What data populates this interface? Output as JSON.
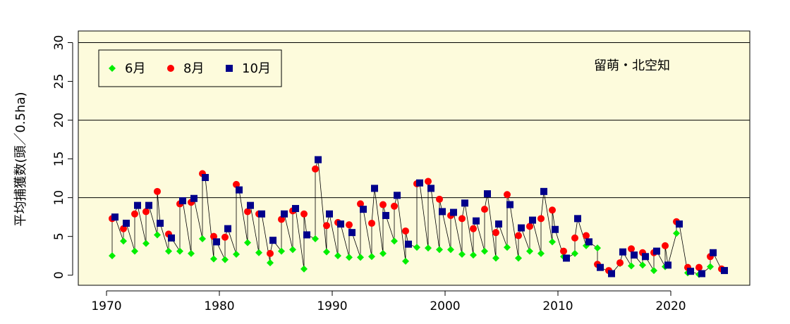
{
  "chart_data": {
    "type": "scatter",
    "title": "",
    "annotation": "留萌・北空知",
    "ylabel": "平均捕獲数(頭／0.5ha)",
    "xlabel": "",
    "xlim": [
      1967.5,
      2027
    ],
    "ylim": [
      -1.3,
      31.5
    ],
    "xticks": [
      1970,
      1980,
      1990,
      2000,
      2010,
      2020
    ],
    "yticks": [
      0,
      5,
      10,
      15,
      20,
      25,
      30
    ],
    "hlines": [
      10,
      20,
      30
    ],
    "background": "#fdfbdc",
    "legend_position": "top-left",
    "series": [
      {
        "name": "6月",
        "marker": "diamond",
        "color": "#00ee00",
        "points": [
          [
            1970.5,
            2.5
          ],
          [
            1971.5,
            4.4
          ],
          [
            1972.5,
            3.1
          ],
          [
            1973.5,
            4.1
          ],
          [
            1974.5,
            5.2
          ],
          [
            1975.5,
            3.1
          ],
          [
            1976.5,
            3.1
          ],
          [
            1977.5,
            2.8
          ],
          [
            1978.5,
            4.7
          ],
          [
            1979.5,
            2.1
          ],
          [
            1980.5,
            2.0
          ],
          [
            1981.5,
            2.7
          ],
          [
            1982.5,
            4.2
          ],
          [
            1983.5,
            2.9
          ],
          [
            1984.5,
            1.6
          ],
          [
            1985.5,
            3.1
          ],
          [
            1986.5,
            3.3
          ],
          [
            1987.5,
            0.8
          ],
          [
            1988.5,
            4.7
          ],
          [
            1989.5,
            3.0
          ],
          [
            1990.5,
            2.5
          ],
          [
            1991.5,
            2.3
          ],
          [
            1992.5,
            2.3
          ],
          [
            1993.5,
            2.4
          ],
          [
            1994.5,
            2.8
          ],
          [
            1995.5,
            4.4
          ],
          [
            1996.5,
            1.8
          ],
          [
            1997.5,
            3.6
          ],
          [
            1998.5,
            3.5
          ],
          [
            1999.5,
            3.3
          ],
          [
            2000.5,
            3.3
          ],
          [
            2001.5,
            2.7
          ],
          [
            2002.5,
            2.6
          ],
          [
            2003.5,
            3.1
          ],
          [
            2004.5,
            2.2
          ],
          [
            2005.5,
            3.6
          ],
          [
            2006.5,
            2.2
          ],
          [
            2007.5,
            3.1
          ],
          [
            2008.5,
            2.8
          ],
          [
            2009.5,
            4.3
          ],
          [
            2010.5,
            2.4
          ],
          [
            2011.5,
            2.8
          ],
          [
            2012.5,
            3.8
          ],
          [
            2013.5,
            3.5
          ],
          [
            2014.5,
            0.5
          ],
          [
            2015.5,
            1.5
          ],
          [
            2016.5,
            1.2
          ],
          [
            2017.5,
            1.3
          ],
          [
            2018.5,
            0.6
          ],
          [
            2019.5,
            1.1
          ],
          [
            2020.5,
            5.4
          ],
          [
            2021.5,
            0.3
          ],
          [
            2022.5,
            0.1
          ],
          [
            2023.5,
            1.1
          ],
          [
            2024.5,
            0.7
          ]
        ]
      },
      {
        "name": "8月",
        "marker": "circle",
        "color": "#ff0000",
        "points": [
          [
            1970.5,
            7.3
          ],
          [
            1971.5,
            6.0
          ],
          [
            1972.5,
            7.9
          ],
          [
            1973.5,
            8.2
          ],
          [
            1974.5,
            10.8
          ],
          [
            1975.5,
            5.3
          ],
          [
            1976.5,
            9.2
          ],
          [
            1977.5,
            9.4
          ],
          [
            1978.5,
            13.1
          ],
          [
            1979.5,
            5.0
          ],
          [
            1980.5,
            4.9
          ],
          [
            1981.5,
            11.7
          ],
          [
            1982.5,
            8.2
          ],
          [
            1983.5,
            7.9
          ],
          [
            1984.5,
            2.8
          ],
          [
            1985.5,
            7.2
          ],
          [
            1986.5,
            8.3
          ],
          [
            1987.5,
            7.9
          ],
          [
            1988.5,
            13.7
          ],
          [
            1989.5,
            6.4
          ],
          [
            1990.5,
            6.8
          ],
          [
            1991.5,
            6.5
          ],
          [
            1992.5,
            9.2
          ],
          [
            1993.5,
            6.7
          ],
          [
            1994.5,
            9.1
          ],
          [
            1995.5,
            8.9
          ],
          [
            1996.5,
            5.7
          ],
          [
            1997.5,
            11.8
          ],
          [
            1998.5,
            12.1
          ],
          [
            1999.5,
            9.8
          ],
          [
            2000.5,
            7.7
          ],
          [
            2001.5,
            7.3
          ],
          [
            2002.5,
            6.0
          ],
          [
            2003.5,
            8.5
          ],
          [
            2004.5,
            5.5
          ],
          [
            2005.5,
            10.4
          ],
          [
            2006.5,
            5.1
          ],
          [
            2007.5,
            6.3
          ],
          [
            2008.5,
            7.3
          ],
          [
            2009.5,
            8.4
          ],
          [
            2010.5,
            3.1
          ],
          [
            2011.5,
            4.8
          ],
          [
            2012.5,
            5.1
          ],
          [
            2013.5,
            1.4
          ],
          [
            2014.5,
            0.6
          ],
          [
            2015.5,
            1.6
          ],
          [
            2016.5,
            3.4
          ],
          [
            2017.5,
            2.9
          ],
          [
            2018.5,
            2.9
          ],
          [
            2019.5,
            3.8
          ],
          [
            2020.5,
            6.9
          ],
          [
            2021.5,
            1.0
          ],
          [
            2022.5,
            1.0
          ],
          [
            2023.5,
            2.4
          ],
          [
            2024.5,
            0.8
          ]
        ]
      },
      {
        "name": "10月",
        "marker": "square",
        "color": "#00008b",
        "points": [
          [
            1970.75,
            7.5
          ],
          [
            1971.75,
            6.7
          ],
          [
            1972.75,
            9.0
          ],
          [
            1973.75,
            9.0
          ],
          [
            1974.75,
            6.7
          ],
          [
            1975.75,
            4.8
          ],
          [
            1976.75,
            9.6
          ],
          [
            1977.75,
            9.9
          ],
          [
            1978.75,
            12.6
          ],
          [
            1979.75,
            4.3
          ],
          [
            1980.75,
            6.0
          ],
          [
            1981.75,
            11.0
          ],
          [
            1982.75,
            9.0
          ],
          [
            1983.75,
            7.9
          ],
          [
            1984.75,
            4.5
          ],
          [
            1985.75,
            7.9
          ],
          [
            1986.75,
            8.6
          ],
          [
            1987.75,
            5.2
          ],
          [
            1988.75,
            14.9
          ],
          [
            1989.75,
            7.9
          ],
          [
            1990.75,
            6.6
          ],
          [
            1991.75,
            5.5
          ],
          [
            1992.75,
            8.5
          ],
          [
            1993.75,
            11.2
          ],
          [
            1994.75,
            7.7
          ],
          [
            1995.75,
            10.3
          ],
          [
            1996.75,
            4.0
          ],
          [
            1997.75,
            11.9
          ],
          [
            1998.75,
            11.2
          ],
          [
            1999.75,
            8.2
          ],
          [
            2000.75,
            8.1
          ],
          [
            2001.75,
            9.3
          ],
          [
            2002.75,
            7.0
          ],
          [
            2003.75,
            10.5
          ],
          [
            2004.75,
            6.6
          ],
          [
            2005.75,
            9.1
          ],
          [
            2006.75,
            6.1
          ],
          [
            2007.75,
            7.1
          ],
          [
            2008.75,
            10.8
          ],
          [
            2009.75,
            5.9
          ],
          [
            2010.75,
            2.2
          ],
          [
            2011.75,
            7.3
          ],
          [
            2012.75,
            4.3
          ],
          [
            2013.75,
            1.0
          ],
          [
            2014.75,
            0.2
          ],
          [
            2015.75,
            3.0
          ],
          [
            2016.75,
            2.6
          ],
          [
            2017.75,
            2.4
          ],
          [
            2018.75,
            3.1
          ],
          [
            2019.75,
            1.3
          ],
          [
            2020.75,
            6.6
          ],
          [
            2021.75,
            0.5
          ],
          [
            2022.75,
            0.2
          ],
          [
            2023.75,
            2.9
          ],
          [
            2024.75,
            0.6
          ]
        ]
      }
    ]
  }
}
